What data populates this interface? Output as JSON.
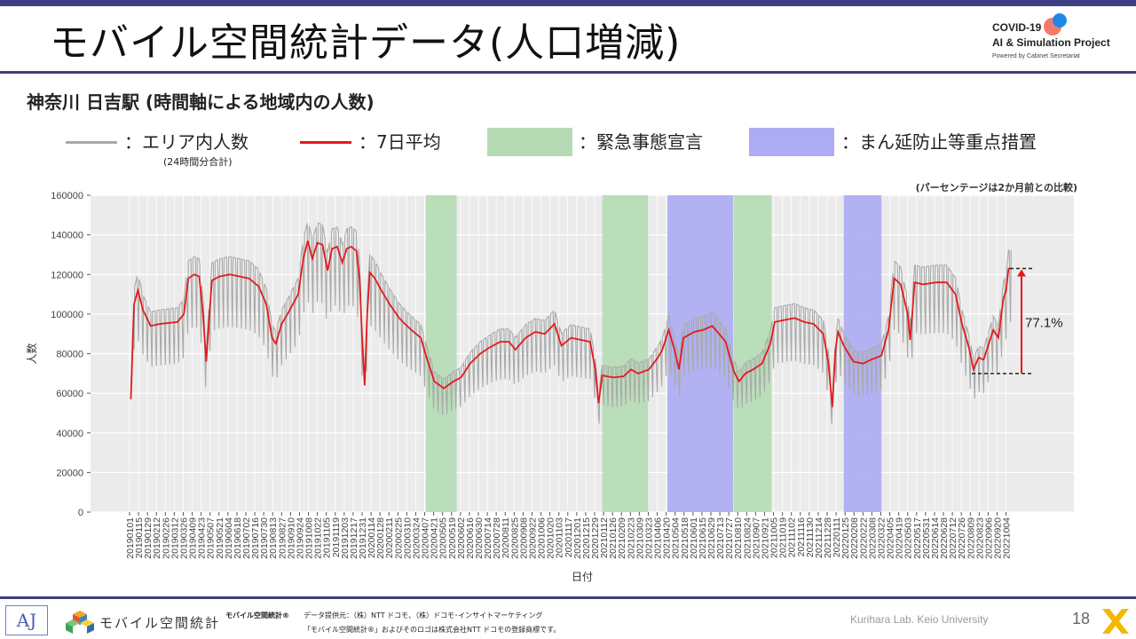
{
  "header": {
    "title": "モバイル空間統計データ(人口増減)",
    "logo_line1": "COVID-19",
    "logo_line2": "AI & Simulation Project",
    "logo_line3": "Powered by Cabinet Secretariat"
  },
  "subtitle": "神奈川 日吉駅 (時間軸による地域内の人数)",
  "legend": {
    "area_count": "：エリア内人数",
    "area_count_note": "(24時間分合計)",
    "avg7": "：7日平均",
    "emergency": "：緊急事態宣言",
    "semi": "：まん延防止等重点措置"
  },
  "colors": {
    "topbar": "#3d3f82",
    "raw_line": "#a9a9a9",
    "avg_line": "#e31a1c",
    "emergency": "#b5dbb5",
    "semi": "#acacf2",
    "plot_bg": "#ebebeb"
  },
  "chart_data": {
    "type": "line",
    "title": "",
    "xlabel": "日付",
    "ylabel": "人数",
    "ylim": [
      0,
      160000
    ],
    "yticks": [
      0,
      20000,
      40000,
      60000,
      80000,
      100000,
      120000,
      140000,
      160000
    ],
    "xtick_labels": [
      "20190101",
      "20190115",
      "20190129",
      "20190212",
      "20190226",
      "20190312",
      "20190326",
      "20190409",
      "20190423",
      "20190507",
      "20190521",
      "20190604",
      "20190618",
      "20190702",
      "20190716",
      "20190730",
      "20190813",
      "20190827",
      "20190910",
      "20190924",
      "20191008",
      "20191022",
      "20191105",
      "20191119",
      "20191203",
      "20191217",
      "20191231",
      "20200114",
      "20200128",
      "20200211",
      "20200225",
      "20200310",
      "20200324",
      "20200407",
      "20200421",
      "20200505",
      "20200519",
      "20200602",
      "20200616",
      "20200630",
      "20200714",
      "20200728",
      "20200811",
      "20200825",
      "20200908",
      "20200922",
      "20201006",
      "20201020",
      "20201103",
      "20201117",
      "20201201",
      "20201215",
      "20201229",
      "20210112",
      "20210126",
      "20210209",
      "20210223",
      "20210309",
      "20210323",
      "20210406",
      "20210420",
      "20210504",
      "20210518",
      "20210601",
      "20210615",
      "20210629",
      "20210713",
      "20210727",
      "20210810",
      "20210824",
      "20210907",
      "20210921",
      "20211005",
      "20211019",
      "20211102",
      "20211116",
      "20211130",
      "20211214",
      "20211228",
      "20220111",
      "20220125",
      "20220208",
      "20220222",
      "20220308",
      "20220322",
      "20220405",
      "20220419",
      "20220503",
      "20220517",
      "20220531",
      "20220614",
      "20220628",
      "20220712",
      "20220726",
      "20220809",
      "20220823",
      "20220906",
      "20220920",
      "20221004"
    ],
    "annotation_note": "(パーセンテージは2か月前との比較)",
    "change_label": "77.1%",
    "change_from": 70000,
    "change_to": 123000,
    "emergency_periods": [
      [
        "2020-04-07",
        "2020-05-25"
      ],
      [
        "2021-01-08",
        "2021-03-21"
      ],
      [
        "2021-08-02",
        "2021-09-30"
      ]
    ],
    "semi_periods": [
      [
        "2021-04-20",
        "2021-08-01"
      ],
      [
        "2022-01-21",
        "2022-03-21"
      ]
    ],
    "avg_series_name": "7日平均",
    "raw_series_name": "エリア内人数",
    "avg_anchors": [
      [
        "2019-01-01",
        57000
      ],
      [
        "2019-01-06",
        105000
      ],
      [
        "2019-01-12",
        112000
      ],
      [
        "2019-01-20",
        102000
      ],
      [
        "2019-02-01",
        94000
      ],
      [
        "2019-02-15",
        95000
      ],
      [
        "2019-03-01",
        95500
      ],
      [
        "2019-03-15",
        96000
      ],
      [
        "2019-03-25",
        100000
      ],
      [
        "2019-04-01",
        118000
      ],
      [
        "2019-04-10",
        120000
      ],
      [
        "2019-04-18",
        119000
      ],
      [
        "2019-04-24",
        100000
      ],
      [
        "2019-04-29",
        76000
      ],
      [
        "2019-05-04",
        100000
      ],
      [
        "2019-05-08",
        117000
      ],
      [
        "2019-05-20",
        119000
      ],
      [
        "2019-06-05",
        120000
      ],
      [
        "2019-06-20",
        119000
      ],
      [
        "2019-07-05",
        118000
      ],
      [
        "2019-07-20",
        114000
      ],
      [
        "2019-08-01",
        105000
      ],
      [
        "2019-08-10",
        88000
      ],
      [
        "2019-08-16",
        85000
      ],
      [
        "2019-08-25",
        95000
      ],
      [
        "2019-09-05",
        101000
      ],
      [
        "2019-09-20",
        110000
      ],
      [
        "2019-09-28",
        128000
      ],
      [
        "2019-10-05",
        137000
      ],
      [
        "2019-10-12",
        128000
      ],
      [
        "2019-10-20",
        136000
      ],
      [
        "2019-10-28",
        135000
      ],
      [
        "2019-11-05",
        122000
      ],
      [
        "2019-11-12",
        133000
      ],
      [
        "2019-11-20",
        134000
      ],
      [
        "2019-11-28",
        126000
      ],
      [
        "2019-12-05",
        133000
      ],
      [
        "2019-12-12",
        134000
      ],
      [
        "2019-12-20",
        132000
      ],
      [
        "2019-12-25",
        118000
      ],
      [
        "2019-12-29",
        88000
      ],
      [
        "2020-01-02",
        64000
      ],
      [
        "2020-01-06",
        100000
      ],
      [
        "2020-01-10",
        121000
      ],
      [
        "2020-01-18",
        118000
      ],
      [
        "2020-01-28",
        112000
      ],
      [
        "2020-02-10",
        105000
      ],
      [
        "2020-02-25",
        98000
      ],
      [
        "2020-03-05",
        95000
      ],
      [
        "2020-03-15",
        92000
      ],
      [
        "2020-03-30",
        88000
      ],
      [
        "2020-04-07",
        79000
      ],
      [
        "2020-04-20",
        66000
      ],
      [
        "2020-05-05",
        62500
      ],
      [
        "2020-05-20",
        66000
      ],
      [
        "2020-06-01",
        68000
      ],
      [
        "2020-06-15",
        75000
      ],
      [
        "2020-07-01",
        80000
      ],
      [
        "2020-07-15",
        83000
      ],
      [
        "2020-08-01",
        86000
      ],
      [
        "2020-08-15",
        86000
      ],
      [
        "2020-08-25",
        82000
      ],
      [
        "2020-09-10",
        88000
      ],
      [
        "2020-09-25",
        91000
      ],
      [
        "2020-10-10",
        90000
      ],
      [
        "2020-10-25",
        95000
      ],
      [
        "2020-11-05",
        84000
      ],
      [
        "2020-11-20",
        88000
      ],
      [
        "2020-12-05",
        87000
      ],
      [
        "2020-12-20",
        86000
      ],
      [
        "2020-12-28",
        72000
      ],
      [
        "2021-01-02",
        55000
      ],
      [
        "2021-01-08",
        69000
      ],
      [
        "2021-01-25",
        68000
      ],
      [
        "2021-02-10",
        68500
      ],
      [
        "2021-02-22",
        72000
      ],
      [
        "2021-03-05",
        70000
      ],
      [
        "2021-03-22",
        72000
      ],
      [
        "2021-04-05",
        78000
      ],
      [
        "2021-04-12",
        82000
      ],
      [
        "2021-04-22",
        92000
      ],
      [
        "2021-05-01",
        82000
      ],
      [
        "2021-05-08",
        72000
      ],
      [
        "2021-05-15",
        88000
      ],
      [
        "2021-06-01",
        91000
      ],
      [
        "2021-06-15",
        92000
      ],
      [
        "2021-06-29",
        94000
      ],
      [
        "2021-07-10",
        90000
      ],
      [
        "2021-07-20",
        86000
      ],
      [
        "2021-08-02",
        71000
      ],
      [
        "2021-08-10",
        66000
      ],
      [
        "2021-08-20",
        70000
      ],
      [
        "2021-09-01",
        72000
      ],
      [
        "2021-09-15",
        75000
      ],
      [
        "2021-09-28",
        85000
      ],
      [
        "2021-10-05",
        96000
      ],
      [
        "2021-10-20",
        97000
      ],
      [
        "2021-11-05",
        98000
      ],
      [
        "2021-11-20",
        96000
      ],
      [
        "2021-12-05",
        95000
      ],
      [
        "2021-12-20",
        90000
      ],
      [
        "2021-12-28",
        75000
      ],
      [
        "2022-01-03",
        53000
      ],
      [
        "2022-01-08",
        82000
      ],
      [
        "2022-01-12",
        91000
      ],
      [
        "2022-01-21",
        84000
      ],
      [
        "2022-02-05",
        76000
      ],
      [
        "2022-02-20",
        75000
      ],
      [
        "2022-03-05",
        77000
      ],
      [
        "2022-03-21",
        79000
      ],
      [
        "2022-04-01",
        92000
      ],
      [
        "2022-04-10",
        118000
      ],
      [
        "2022-04-20",
        115000
      ],
      [
        "2022-05-01",
        100000
      ],
      [
        "2022-05-05",
        87000
      ],
      [
        "2022-05-12",
        116000
      ],
      [
        "2022-05-25",
        115000
      ],
      [
        "2022-06-15",
        116000
      ],
      [
        "2022-07-01",
        116000
      ],
      [
        "2022-07-15",
        110000
      ],
      [
        "2022-07-25",
        95000
      ],
      [
        "2022-08-05",
        83000
      ],
      [
        "2022-08-12",
        72000
      ],
      [
        "2022-08-20",
        78000
      ],
      [
        "2022-08-28",
        77000
      ],
      [
        "2022-09-05",
        85000
      ],
      [
        "2022-09-12",
        92000
      ],
      [
        "2022-09-20",
        88000
      ],
      [
        "2022-09-28",
        108000
      ],
      [
        "2022-10-02",
        112000
      ],
      [
        "2022-10-06",
        123000
      ],
      [
        "2022-10-10",
        123000
      ]
    ]
  },
  "footer": {
    "aj_logo": "AJ",
    "mobile_logo": "モバイル空間統計",
    "mobile_mark": "モバイル空間統計®",
    "provider": "データ提供元：（株）NTT ドコモ、（株）ドコモ･インサイトマーケティング",
    "trademark": "「モバイル空間統計®」およびそのロゴは株式会社NTT ドコモの登録商標です。",
    "credit": "Kurihara Lab. Keio University",
    "page_number": "18"
  }
}
